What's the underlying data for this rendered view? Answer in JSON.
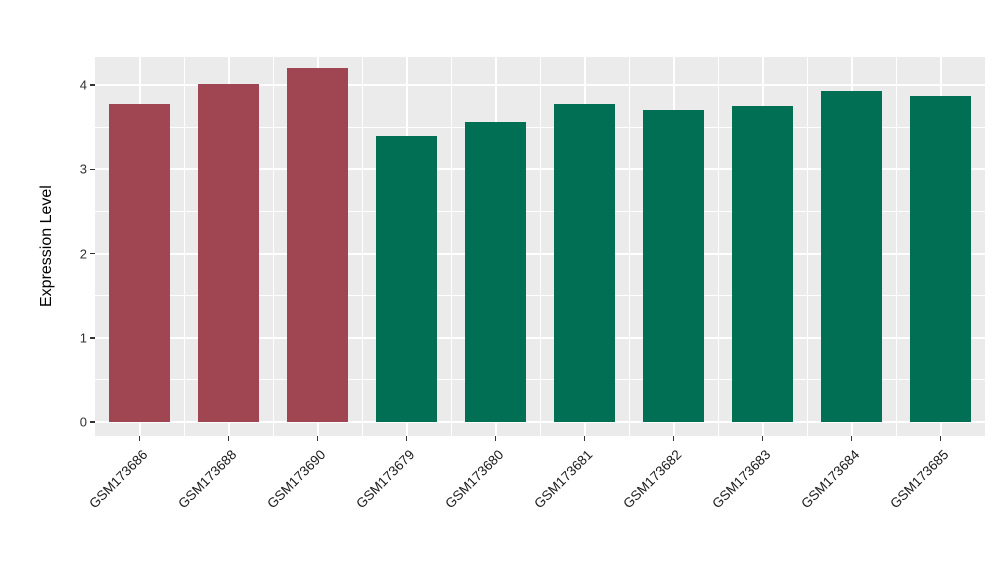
{
  "chart_data": {
    "type": "bar",
    "title": "",
    "xlabel": "",
    "ylabel": "Expression Level",
    "categories": [
      "GSM173686",
      "GSM173688",
      "GSM173690",
      "GSM173679",
      "GSM173680",
      "GSM173681",
      "GSM173682",
      "GSM173683",
      "GSM173684",
      "GSM173685"
    ],
    "values": [
      3.78,
      4.01,
      4.2,
      3.4,
      3.56,
      3.78,
      3.7,
      3.75,
      3.93,
      3.87
    ],
    "bar_colors": [
      "#A04552",
      "#A04552",
      "#A04552",
      "#006F53",
      "#006F53",
      "#006F53",
      "#006F53",
      "#006F53",
      "#006F53",
      "#006F53"
    ],
    "ylim": [
      0,
      4.2
    ],
    "yticks": [
      0,
      1,
      2,
      3,
      4
    ],
    "minor_ytick_step": 0.5,
    "grid": "on",
    "legend": "none",
    "panel_background": "#EBEBEB",
    "grid_color": "#FFFFFF",
    "colors": {
      "group1_fill": "#A04552",
      "group2_fill": "#006F53",
      "axis_text": "#303030",
      "tick_mark": "#333333"
    }
  }
}
